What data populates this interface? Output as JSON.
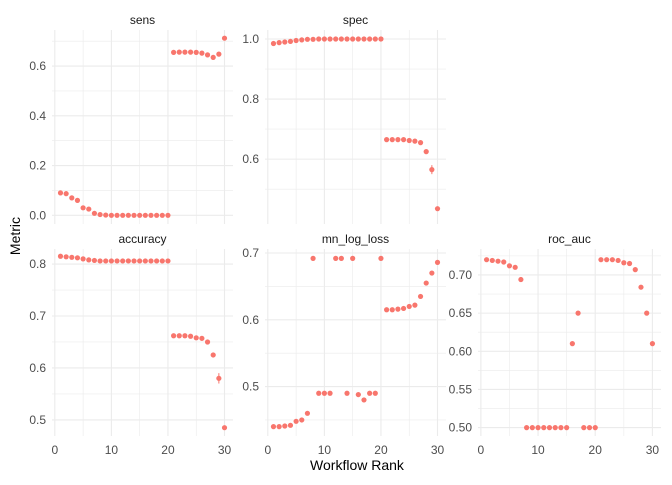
{
  "chart_data": {
    "type": "scatter",
    "xlabel": "Workflow Rank",
    "ylabel": "Metric",
    "point_color": "#F8766D",
    "grid_color": "#EBEBEB",
    "text_color": "#4D4D4D",
    "panels": [
      {
        "title": "sens",
        "xlim": [
          -0.5,
          31.5
        ],
        "ylim": [
          -0.035,
          0.745
        ],
        "xticks": [
          0,
          10,
          20,
          30
        ],
        "yticks": [
          0.0,
          0.2,
          0.4,
          0.6
        ],
        "ytick_labels": [
          "0.0",
          "0.2",
          "0.4",
          "0.6"
        ],
        "show_x_labels": false,
        "x": [
          1,
          2,
          3,
          4,
          5,
          6,
          7,
          8,
          9,
          10,
          11,
          12,
          13,
          14,
          15,
          16,
          17,
          18,
          19,
          20,
          21,
          22,
          23,
          24,
          25,
          26,
          27,
          28,
          29,
          30
        ],
        "y": [
          0.09,
          0.087,
          0.07,
          0.06,
          0.03,
          0.025,
          0.008,
          0.003,
          0.001,
          0.0,
          0.0,
          0.0,
          0.0,
          0.0,
          0.0,
          0.0,
          0.0,
          0.0,
          0.0,
          0.0,
          0.655,
          0.656,
          0.656,
          0.656,
          0.655,
          0.652,
          0.645,
          0.635,
          0.648,
          0.712
        ],
        "err": [
          0,
          0,
          0,
          0,
          0,
          0,
          0,
          0,
          0,
          0,
          0,
          0,
          0,
          0,
          0,
          0,
          0,
          0,
          0,
          0,
          0,
          0,
          0,
          0,
          0,
          0,
          0,
          0,
          0,
          0
        ]
      },
      {
        "title": "spec",
        "xlim": [
          -0.5,
          31.5
        ],
        "ylim": [
          0.384,
          1.03
        ],
        "xticks": [
          0,
          10,
          20,
          30
        ],
        "yticks": [
          0.6,
          0.8,
          1.0
        ],
        "ytick_labels": [
          "0.6",
          "0.8",
          "1.0"
        ],
        "show_x_labels": false,
        "x": [
          1,
          2,
          3,
          4,
          5,
          6,
          7,
          8,
          9,
          10,
          11,
          12,
          13,
          14,
          15,
          16,
          17,
          18,
          19,
          20,
          21,
          22,
          23,
          24,
          25,
          26,
          27,
          28,
          29,
          30
        ],
        "y": [
          0.985,
          0.988,
          0.99,
          0.992,
          0.995,
          0.997,
          0.999,
          0.999,
          1.0,
          1.0,
          1.0,
          1.0,
          1.0,
          1.0,
          1.0,
          1.0,
          1.0,
          1.0,
          1.0,
          1.0,
          0.665,
          0.665,
          0.665,
          0.665,
          0.662,
          0.66,
          0.655,
          0.625,
          0.565,
          0.435
        ],
        "err": [
          0,
          0,
          0,
          0,
          0,
          0,
          0,
          0,
          0,
          0,
          0,
          0,
          0,
          0,
          0,
          0,
          0,
          0,
          0,
          0,
          0,
          0,
          0,
          0,
          0,
          0,
          0,
          0,
          0.015,
          0
        ]
      },
      {
        "title": "accuracy",
        "xlim": [
          -0.5,
          31.5
        ],
        "ylim": [
          0.469,
          0.829
        ],
        "xticks": [
          0,
          10,
          20,
          30
        ],
        "yticks": [
          0.5,
          0.6,
          0.7,
          0.8
        ],
        "ytick_labels": [
          "0.5",
          "0.6",
          "0.7",
          "0.8"
        ],
        "show_x_labels": true,
        "x": [
          1,
          2,
          3,
          4,
          5,
          6,
          7,
          8,
          9,
          10,
          11,
          12,
          13,
          14,
          15,
          16,
          17,
          18,
          19,
          20,
          21,
          22,
          23,
          24,
          25,
          26,
          27,
          28,
          29,
          30
        ],
        "y": [
          0.815,
          0.814,
          0.813,
          0.812,
          0.81,
          0.808,
          0.807,
          0.806,
          0.806,
          0.806,
          0.806,
          0.806,
          0.806,
          0.806,
          0.806,
          0.806,
          0.806,
          0.806,
          0.806,
          0.806,
          0.662,
          0.662,
          0.662,
          0.661,
          0.658,
          0.657,
          0.65,
          0.625,
          0.58,
          0.485
        ],
        "err": [
          0,
          0,
          0,
          0,
          0,
          0,
          0,
          0,
          0,
          0,
          0,
          0,
          0,
          0,
          0,
          0,
          0,
          0,
          0,
          0,
          0,
          0,
          0,
          0,
          0,
          0,
          0,
          0,
          0.01,
          0
        ]
      },
      {
        "title": "mn_log_loss",
        "xlim": [
          -0.5,
          31.5
        ],
        "ylim": [
          0.426,
          0.706
        ],
        "xticks": [
          0,
          10,
          20,
          30
        ],
        "yticks": [
          0.5,
          0.6,
          0.7
        ],
        "ytick_labels": [
          "0.5",
          "0.6",
          "0.7"
        ],
        "show_x_labels": true,
        "x": [
          1,
          2,
          3,
          4,
          5,
          6,
          7,
          8,
          9,
          10,
          11,
          12,
          13,
          14,
          15,
          16,
          17,
          18,
          19,
          20,
          21,
          22,
          23,
          24,
          25,
          26,
          27,
          28,
          29,
          30
        ],
        "y": [
          0.44,
          0.44,
          0.441,
          0.442,
          0.448,
          0.45,
          0.46,
          0.692,
          0.49,
          0.49,
          0.49,
          0.692,
          0.692,
          0.49,
          0.692,
          0.488,
          0.48,
          0.49,
          0.49,
          0.692,
          0.615,
          0.615,
          0.616,
          0.617,
          0.62,
          0.622,
          0.635,
          0.655,
          0.67,
          0.686
        ],
        "err": [
          0,
          0,
          0,
          0,
          0,
          0,
          0,
          0,
          0,
          0,
          0,
          0,
          0,
          0,
          0,
          0,
          0,
          0,
          0,
          0,
          0,
          0,
          0,
          0,
          0,
          0,
          0,
          0,
          0,
          0
        ]
      },
      {
        "title": "roc_auc",
        "xlim": [
          -0.5,
          31.5
        ],
        "ylim": [
          0.489,
          0.734
        ],
        "xticks": [
          0,
          10,
          20,
          30
        ],
        "yticks": [
          0.5,
          0.55,
          0.6,
          0.65,
          0.7
        ],
        "ytick_labels": [
          "0.50",
          "0.55",
          "0.60",
          "0.65",
          "0.70"
        ],
        "show_x_labels": true,
        "x": [
          1,
          2,
          3,
          4,
          5,
          6,
          7,
          8,
          9,
          10,
          11,
          12,
          13,
          14,
          15,
          16,
          17,
          18,
          19,
          20,
          21,
          22,
          23,
          24,
          25,
          26,
          27,
          28,
          29,
          30
        ],
        "y": [
          0.72,
          0.719,
          0.718,
          0.717,
          0.712,
          0.71,
          0.694,
          0.5,
          0.5,
          0.5,
          0.5,
          0.5,
          0.5,
          0.5,
          0.5,
          0.61,
          0.65,
          0.5,
          0.5,
          0.5,
          0.72,
          0.72,
          0.72,
          0.719,
          0.716,
          0.715,
          0.707,
          0.684,
          0.65,
          0.61
        ],
        "err": [
          0,
          0,
          0,
          0,
          0,
          0,
          0,
          0,
          0,
          0,
          0,
          0,
          0,
          0,
          0,
          0,
          0,
          0,
          0,
          0,
          0,
          0,
          0,
          0,
          0,
          0,
          0,
          0,
          0,
          0
        ]
      }
    ]
  }
}
